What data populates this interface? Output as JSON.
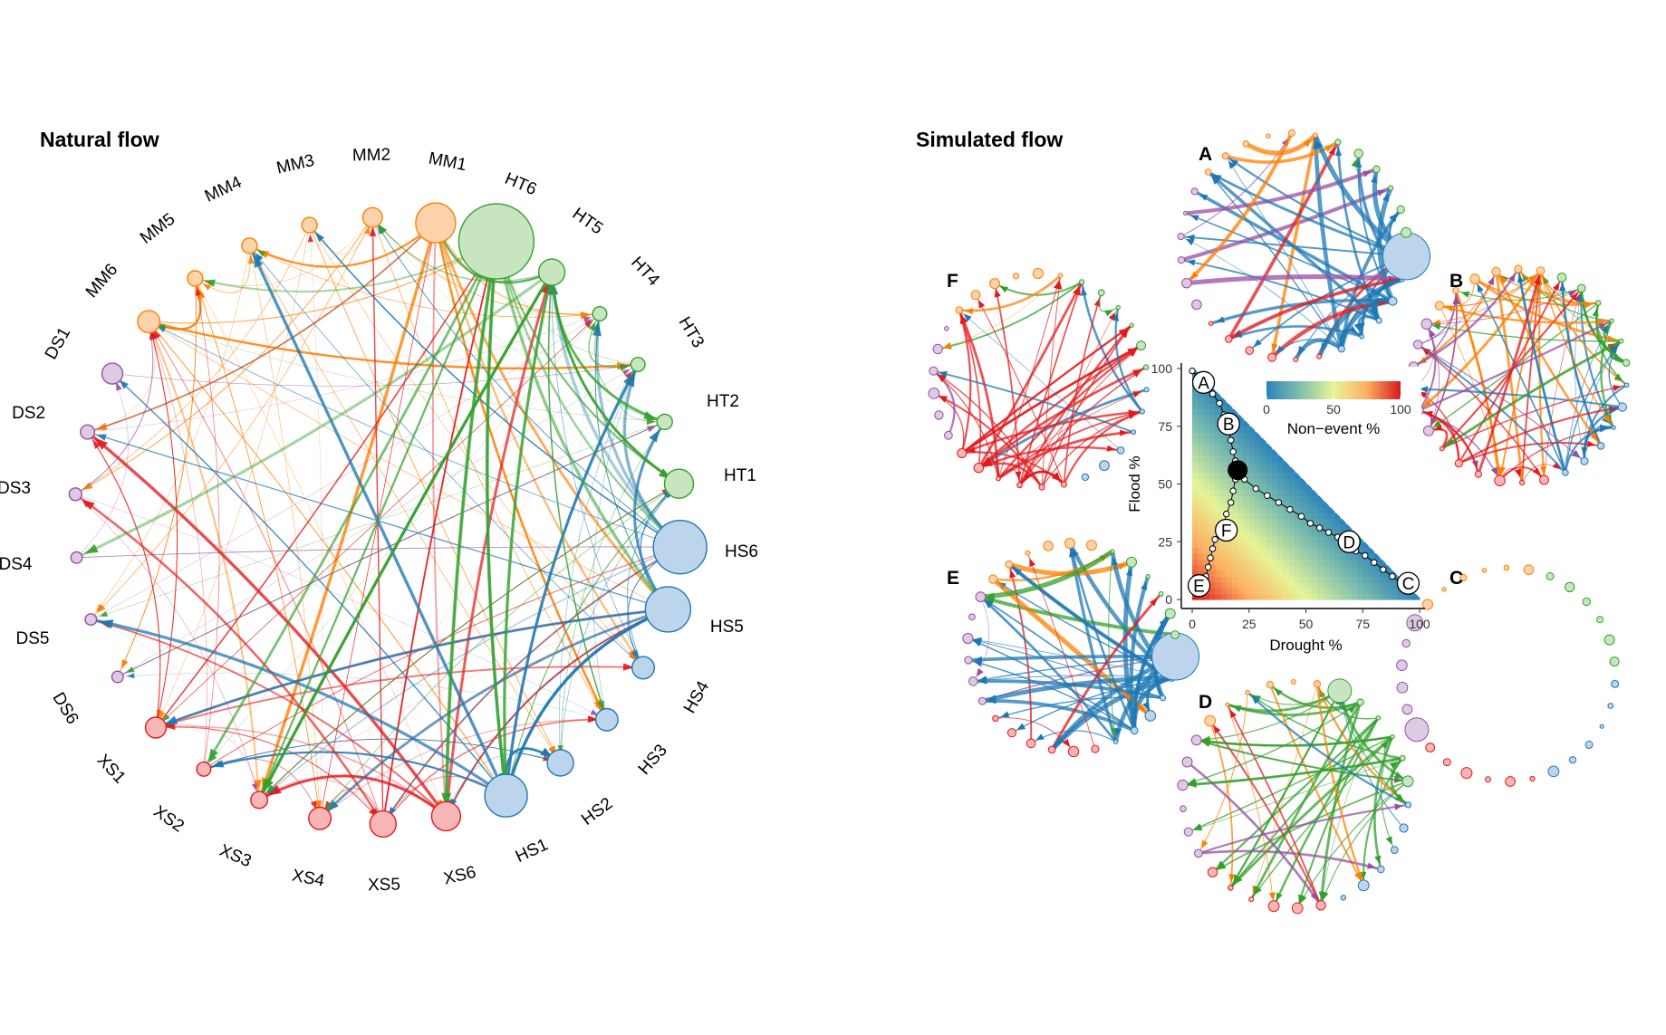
{
  "titles": {
    "natural": "Natural flow",
    "simulated": "Simulated flow"
  },
  "colors": {
    "MM": "#ff7f00",
    "HT": "#33a02c",
    "HS": "#1f78b4",
    "XS": "#e31a1c",
    "DS": "#984ea3",
    "MM_fill": "#fdd3ac",
    "HT_fill": "#c7e6c0",
    "HS_fill": "#bcd4ec",
    "XS_fill": "#f9b6b6",
    "DS_fill": "#dccbe3"
  },
  "natural_nodes": [
    {
      "id": "MM1",
      "group": "MM",
      "size": 2.4
    },
    {
      "id": "MM2",
      "group": "MM",
      "size": 0.9
    },
    {
      "id": "MM3",
      "group": "MM",
      "size": 0.6
    },
    {
      "id": "MM4",
      "group": "MM",
      "size": 0.6
    },
    {
      "id": "MM5",
      "group": "MM",
      "size": 0.6
    },
    {
      "id": "MM6",
      "group": "MM",
      "size": 1.1
    },
    {
      "id": "DS1",
      "group": "DS",
      "size": 1.0
    },
    {
      "id": "DS2",
      "group": "DS",
      "size": 0.5
    },
    {
      "id": "DS3",
      "group": "DS",
      "size": 0.4
    },
    {
      "id": "DS4",
      "group": "DS",
      "size": 0.3
    },
    {
      "id": "DS5",
      "group": "DS",
      "size": 0.3
    },
    {
      "id": "DS6",
      "group": "DS",
      "size": 0.3
    },
    {
      "id": "XS1",
      "group": "XS",
      "size": 1.0
    },
    {
      "id": "XS2",
      "group": "XS",
      "size": 0.5
    },
    {
      "id": "XS3",
      "group": "XS",
      "size": 0.7
    },
    {
      "id": "XS4",
      "group": "XS",
      "size": 1.1
    },
    {
      "id": "XS5",
      "group": "XS",
      "size": 1.4
    },
    {
      "id": "XS6",
      "group": "XS",
      "size": 1.6
    },
    {
      "id": "HS1",
      "group": "HS",
      "size": 2.6
    },
    {
      "id": "HS2",
      "group": "HS",
      "size": 1.4
    },
    {
      "id": "HS3",
      "group": "HS",
      "size": 1.1
    },
    {
      "id": "HS4",
      "group": "HS",
      "size": 1.1
    },
    {
      "id": "HS5",
      "group": "HS",
      "size": 2.8
    },
    {
      "id": "HS6",
      "group": "HS",
      "size": 3.4
    },
    {
      "id": "HT1",
      "group": "HT",
      "size": 1.6
    },
    {
      "id": "HT2",
      "group": "HT",
      "size": 0.6
    },
    {
      "id": "HT3",
      "group": "HT",
      "size": 0.5
    },
    {
      "id": "HT4",
      "group": "HT",
      "size": 0.5
    },
    {
      "id": "HT5",
      "group": "HT",
      "size": 1.4
    },
    {
      "id": "HT6",
      "group": "HT",
      "size": 5.0
    }
  ],
  "subpanels": [
    {
      "letter": "A",
      "dominant": "HS"
    },
    {
      "letter": "B",
      "dominant": "mixed"
    },
    {
      "letter": "C",
      "dominant": "none"
    },
    {
      "letter": "D",
      "dominant": "HT"
    },
    {
      "letter": "E",
      "dominant": "HS"
    },
    {
      "letter": "F",
      "dominant": "XS"
    }
  ],
  "chart_data": {
    "type": "scatter",
    "xlabel": "Drought %",
    "ylabel": "Flood %",
    "xlim": [
      0,
      100
    ],
    "ylim": [
      0,
      100
    ],
    "xticks": [
      "0",
      "25",
      "50",
      "75",
      "100"
    ],
    "yticks": [
      "0",
      "25",
      "50",
      "75",
      "100"
    ],
    "colorbar": {
      "label": "Non−event %",
      "ticks": [
        "0",
        "50",
        "100"
      ],
      "range": [
        0,
        100
      ]
    },
    "path_points": [
      {
        "x": 0,
        "y": 99
      },
      {
        "x": 3,
        "y": 96
      },
      {
        "x": 6,
        "y": 93
      },
      {
        "x": 9,
        "y": 89
      },
      {
        "x": 12,
        "y": 85
      },
      {
        "x": 14,
        "y": 80
      },
      {
        "x": 16,
        "y": 74
      },
      {
        "x": 17,
        "y": 69
      },
      {
        "x": 18,
        "y": 64
      },
      {
        "x": 19,
        "y": 60
      },
      {
        "x": 20,
        "y": 56
      },
      {
        "x": 23,
        "y": 52
      },
      {
        "x": 28,
        "y": 48
      },
      {
        "x": 33,
        "y": 45
      },
      {
        "x": 38,
        "y": 42
      },
      {
        "x": 43,
        "y": 39
      },
      {
        "x": 48,
        "y": 36
      },
      {
        "x": 52,
        "y": 33
      },
      {
        "x": 56,
        "y": 31
      },
      {
        "x": 60,
        "y": 29
      },
      {
        "x": 64,
        "y": 27
      },
      {
        "x": 68,
        "y": 24
      },
      {
        "x": 72,
        "y": 21
      },
      {
        "x": 76,
        "y": 19
      },
      {
        "x": 80,
        "y": 16
      },
      {
        "x": 84,
        "y": 13
      },
      {
        "x": 88,
        "y": 10
      },
      {
        "x": 92,
        "y": 7
      },
      {
        "x": 19,
        "y": 52
      },
      {
        "x": 18,
        "y": 47
      },
      {
        "x": 17,
        "y": 42
      },
      {
        "x": 15,
        "y": 37
      },
      {
        "x": 14,
        "y": 33
      },
      {
        "x": 12,
        "y": 30
      },
      {
        "x": 10,
        "y": 26
      },
      {
        "x": 9,
        "y": 22
      },
      {
        "x": 8,
        "y": 18
      },
      {
        "x": 7,
        "y": 14
      },
      {
        "x": 6,
        "y": 10
      },
      {
        "x": 5,
        "y": 7
      },
      {
        "x": 4,
        "y": 4
      }
    ],
    "highlight": {
      "x": 20,
      "y": 56
    },
    "labeled_points": [
      {
        "label": "A",
        "x": 5,
        "y": 94
      },
      {
        "label": "B",
        "x": 16,
        "y": 76
      },
      {
        "label": "C",
        "x": 95,
        "y": 7
      },
      {
        "label": "D",
        "x": 69,
        "y": 25
      },
      {
        "label": "E",
        "x": 3,
        "y": 6
      },
      {
        "label": "F",
        "x": 15,
        "y": 30
      }
    ]
  }
}
